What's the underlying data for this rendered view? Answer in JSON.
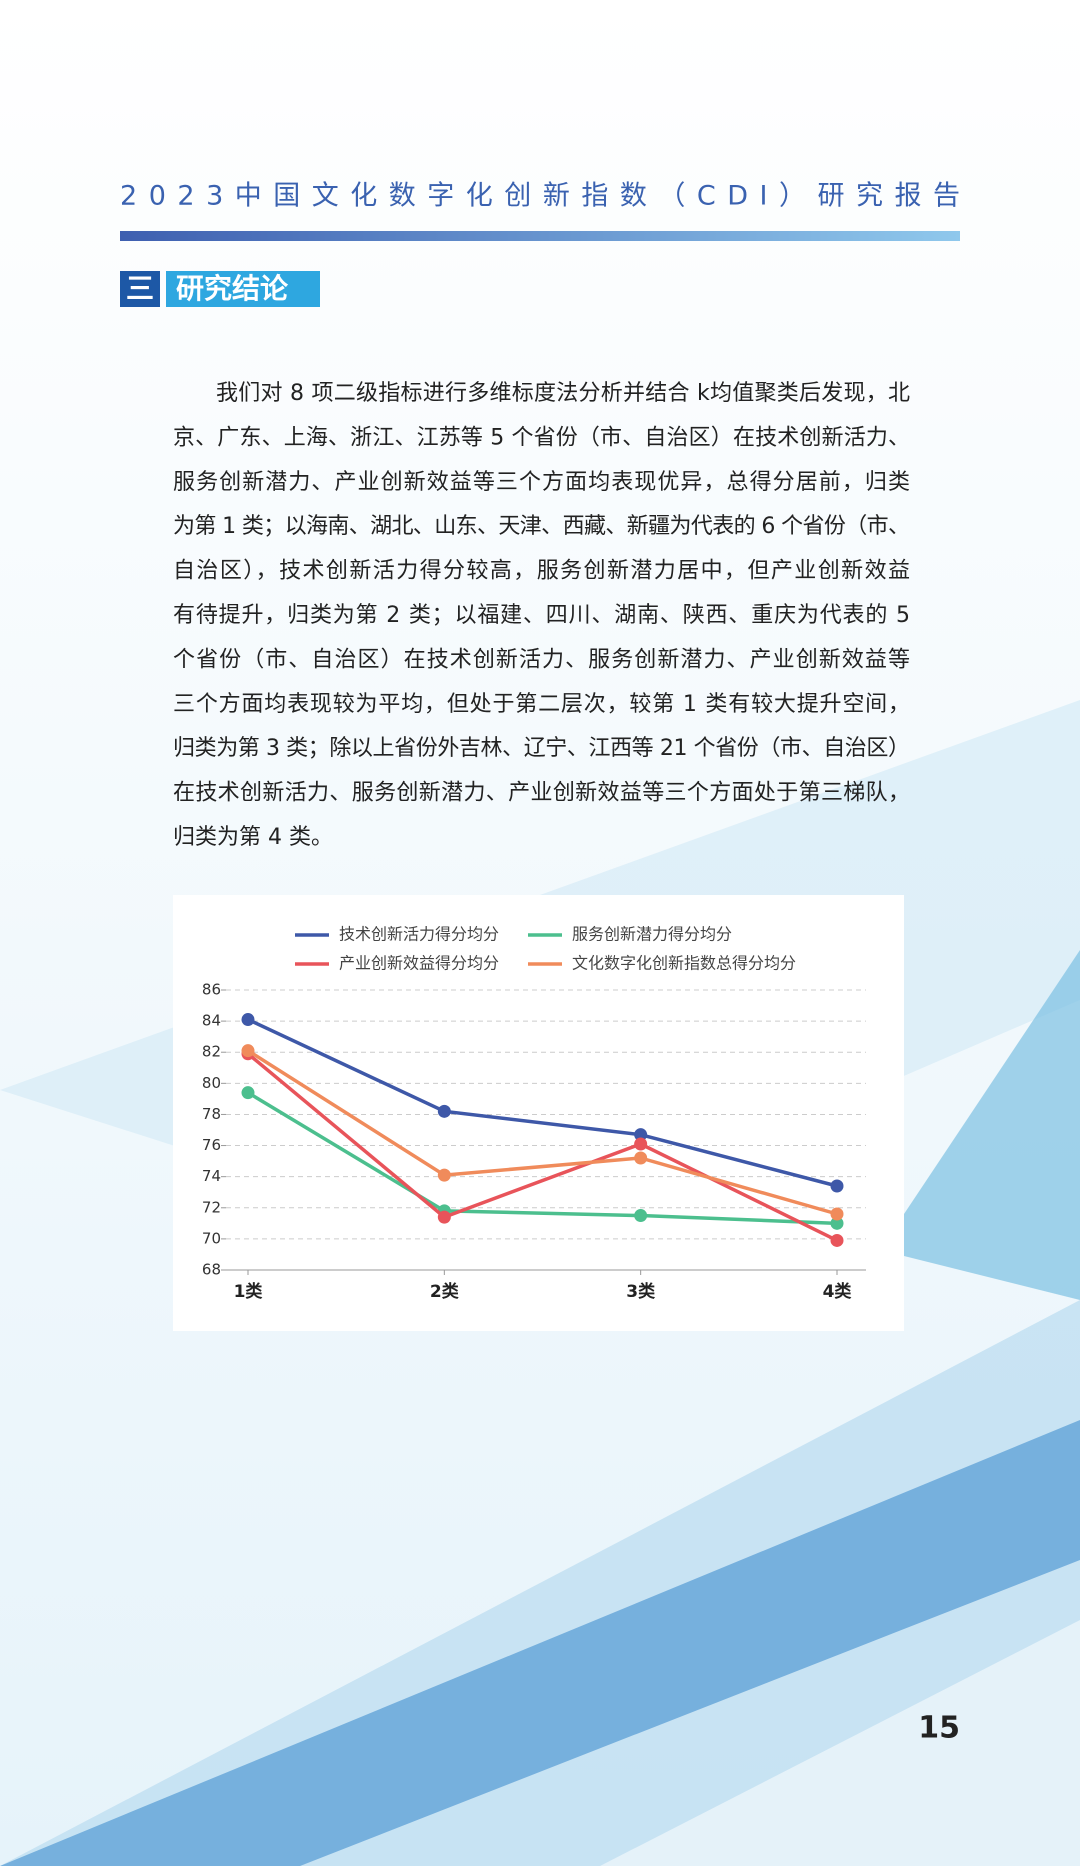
{
  "header": {
    "title": "2023中国文化数字化创新指数（CDI）研究报告"
  },
  "section": {
    "number": "三",
    "title": "研究结论"
  },
  "paragraph": [
    "我们对 8 项二级指标进行多维标度法分析并结合 k均值聚类后发现，北",
    "京、广东、上海、浙江、江苏等 5 个省份（市、自治区）在技术创新活力、",
    "服务创新潜力、产业创新效益等三个方面均表现优异，总得分居前，归类",
    "为第 1 类；以海南、湖北、山东、天津、西藏、新疆为代表的 6 个省份（市、",
    "自治区），技术创新活力得分较高，服务创新潜力居中，但产业创新效益",
    "有待提升，归类为第 2 类；以福建、四川、湖南、陕西、重庆为代表的 5",
    "个省份（市、自治区）在技术创新活力、服务创新潜力、产业创新效益等",
    "三个方面均表现较为平均，但处于第二层次，较第 1 类有较大提升空间，",
    "归类为第 3 类；除以上省份外吉林、辽宁、江西等 21 个省份（市、自治区）",
    "在技术创新活力、服务创新潜力、产业创新效益等三个方面处于第三梯队，",
    "归类为第 4 类。"
  ],
  "chart_data": {
    "type": "line",
    "categories": [
      "1类",
      "2类",
      "3类",
      "4类"
    ],
    "series": [
      {
        "name": "技术创新活力得分均分",
        "color": "#3e58a8",
        "values": [
          84.1,
          78.2,
          76.7,
          73.4
        ]
      },
      {
        "name": "服务创新潜力得分均分",
        "color": "#4cbf8e",
        "values": [
          79.4,
          71.8,
          71.5,
          71.0
        ]
      },
      {
        "name": "产业创新效益得分均分",
        "color": "#e8545a",
        "values": [
          81.9,
          71.4,
          76.1,
          69.9
        ]
      },
      {
        "name": "文化数字化创新指数总得分均分",
        "color": "#f08b5b",
        "values": [
          82.1,
          74.1,
          75.2,
          71.6
        ]
      }
    ],
    "ylim": [
      68,
      86
    ],
    "yticks": [
      68,
      70,
      72,
      74,
      76,
      78,
      80,
      82,
      84,
      86
    ],
    "grid": true
  },
  "page_number": "15"
}
